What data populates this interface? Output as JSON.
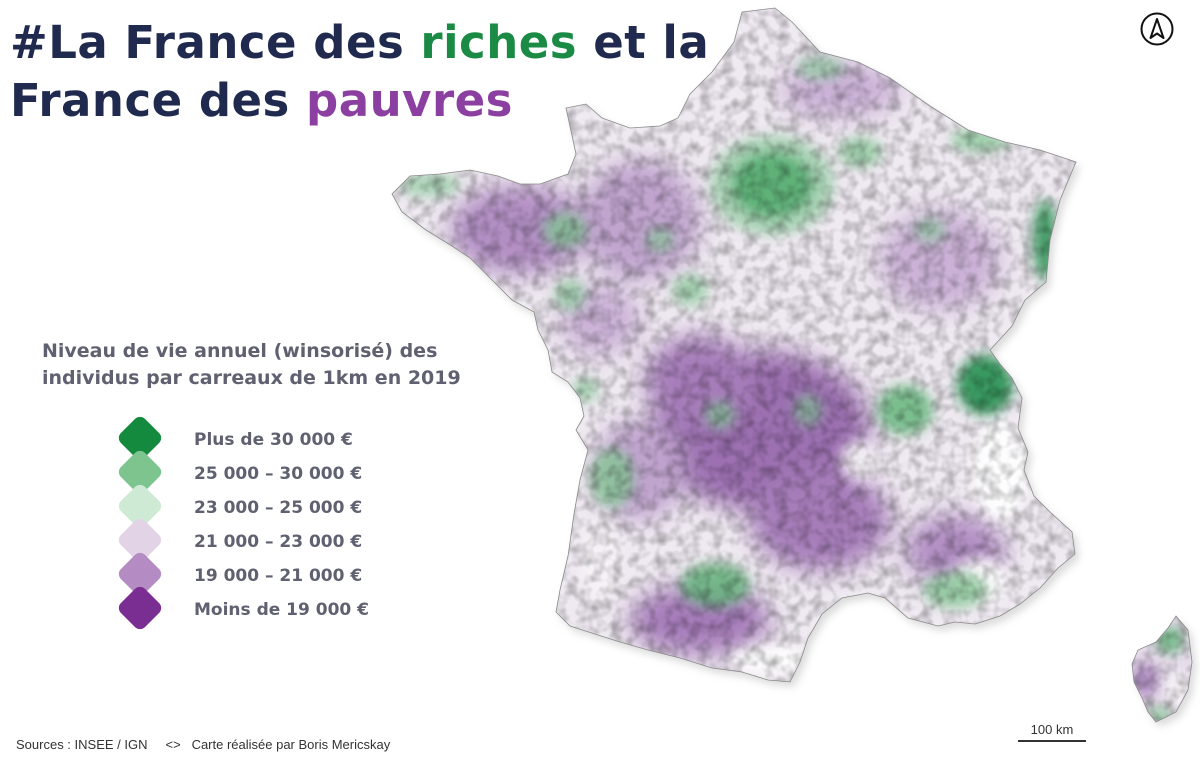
{
  "title": {
    "line1_prefix": "#La France des ",
    "line1_highlight": "riches",
    "line1_suffix": " et la",
    "line2_prefix": "France des ",
    "line2_highlight": "pauvres",
    "colors": {
      "text": "#1f2a4e",
      "riches": "#1a8a44",
      "pauvres": "#8b3fa0"
    }
  },
  "legend": {
    "title": "Niveau de vie annuel (winsorisé) des individus par carreaux de 1km en 2019",
    "items": [
      {
        "label": "Plus de 30 000 €",
        "color": "#138a3e"
      },
      {
        "label": "25 000 – 30 000 €",
        "color": "#7dc48f"
      },
      {
        "label": "23 000 – 25 000 €",
        "color": "#cfead4"
      },
      {
        "label": "21 000 – 23 000 €",
        "color": "#e2d4e6"
      },
      {
        "label": "19 000 – 21 000 €",
        "color": "#b48cc3"
      },
      {
        "label": "Moins de 19 000 €",
        "color": "#7a2e92"
      }
    ]
  },
  "north_arrow": {
    "icon": "north-arrow-icon",
    "letter": "A"
  },
  "scale_bar": {
    "label": "100 km"
  },
  "sources": "Sources : INSEE / IGN     <>   Carte réalisée par Boris Mericskay"
}
